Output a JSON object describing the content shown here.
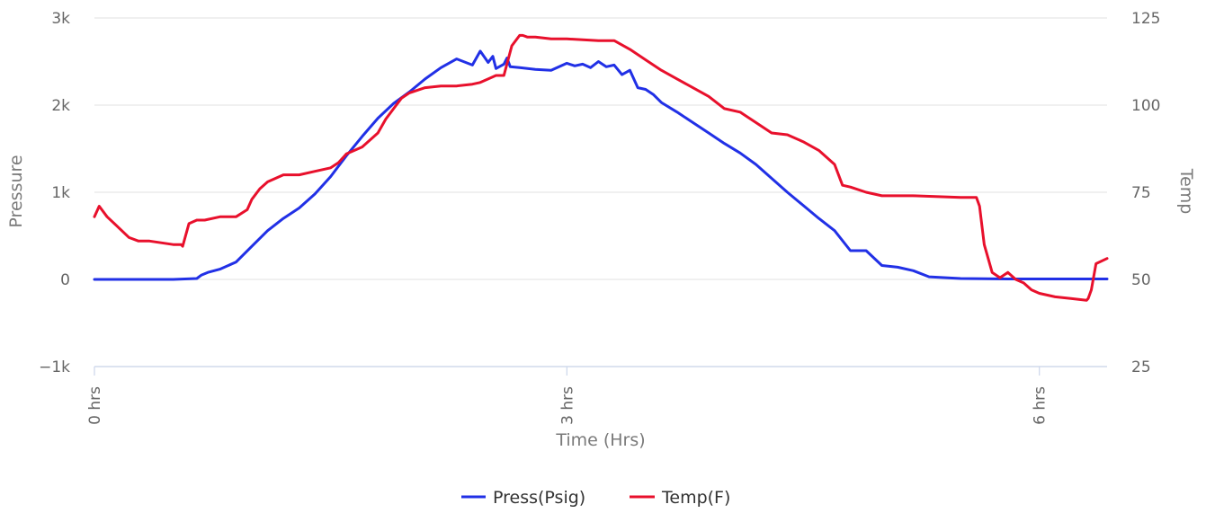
{
  "chart_data": {
    "type": "line",
    "title": "",
    "xlabel": "Time (Hrs)",
    "ylabel_left": "Pressure",
    "ylabel_right": "Temp",
    "xlim": [
      0,
      6.43
    ],
    "ylim_left": [
      -1000,
      3000
    ],
    "ylim_right": [
      25,
      125
    ],
    "x_ticks": [
      {
        "value": 0,
        "label": "0 hrs"
      },
      {
        "value": 3,
        "label": "3 hrs"
      },
      {
        "value": 6,
        "label": "6 hrs"
      }
    ],
    "y_left_ticks": [
      {
        "value": -1000,
        "label": "−1k"
      },
      {
        "value": 0,
        "label": "0"
      },
      {
        "value": 1000,
        "label": "1k"
      },
      {
        "value": 2000,
        "label": "2k"
      },
      {
        "value": 3000,
        "label": "3k"
      }
    ],
    "y_right_ticks": [
      {
        "value": 25,
        "label": "25"
      },
      {
        "value": 50,
        "label": "50"
      },
      {
        "value": 75,
        "label": "75"
      },
      {
        "value": 100,
        "label": "100"
      },
      {
        "value": 125,
        "label": "125"
      }
    ],
    "grid": true,
    "legend_position": "bottom-center",
    "series": [
      {
        "name": "Press(Psig)",
        "axis": "left",
        "color": "#2130e6",
        "x": [
          0,
          0.5,
          0.65,
          0.68,
          0.72,
          0.8,
          0.9,
          1.0,
          1.1,
          1.2,
          1.3,
          1.4,
          1.5,
          1.6,
          1.7,
          1.8,
          1.9,
          2.0,
          2.1,
          2.2,
          2.3,
          2.4,
          2.45,
          2.5,
          2.53,
          2.55,
          2.6,
          2.62,
          2.64,
          2.7,
          2.8,
          2.9,
          3.0,
          3.05,
          3.1,
          3.15,
          3.2,
          3.25,
          3.3,
          3.35,
          3.4,
          3.45,
          3.5,
          3.55,
          3.6,
          3.7,
          3.8,
          3.9,
          4.0,
          4.1,
          4.2,
          4.3,
          4.4,
          4.5,
          4.6,
          4.7,
          4.8,
          4.9,
          5.0,
          5.1,
          5.2,
          5.3,
          5.5,
          5.8,
          6.0,
          6.2,
          6.43
        ],
        "values": [
          0,
          0,
          10,
          50,
          80,
          120,
          200,
          380,
          560,
          700,
          820,
          980,
          1180,
          1420,
          1640,
          1850,
          2020,
          2150,
          2300,
          2430,
          2530,
          2460,
          2620,
          2490,
          2560,
          2420,
          2470,
          2540,
          2440,
          2430,
          2410,
          2400,
          2480,
          2450,
          2470,
          2430,
          2500,
          2440,
          2460,
          2350,
          2400,
          2200,
          2180,
          2120,
          2030,
          1920,
          1800,
          1680,
          1560,
          1450,
          1320,
          1160,
          1000,
          850,
          700,
          560,
          330,
          330,
          160,
          140,
          100,
          30,
          10,
          5,
          5,
          5,
          5
        ]
      },
      {
        "name": "Temp(F)",
        "axis": "right",
        "color": "#e8102c",
        "x": [
          0,
          0.03,
          0.08,
          0.15,
          0.22,
          0.28,
          0.3,
          0.35,
          0.5,
          0.55,
          0.56,
          0.6,
          0.65,
          0.7,
          0.8,
          0.9,
          0.97,
          1.0,
          1.05,
          1.1,
          1.2,
          1.3,
          1.4,
          1.5,
          1.55,
          1.6,
          1.7,
          1.8,
          1.85,
          1.9,
          1.95,
          2.0,
          2.1,
          2.2,
          2.3,
          2.4,
          2.45,
          2.5,
          2.55,
          2.6,
          2.65,
          2.7,
          2.72,
          2.75,
          2.8,
          2.9,
          3.0,
          3.2,
          3.3,
          3.4,
          3.5,
          3.6,
          3.7,
          3.8,
          3.9,
          4.0,
          4.1,
          4.2,
          4.3,
          4.4,
          4.5,
          4.6,
          4.7,
          4.75,
          4.8,
          4.9,
          5.0,
          5.1,
          5.2,
          5.5,
          5.6,
          5.62,
          5.65,
          5.7,
          5.75,
          5.8,
          5.85,
          5.9,
          5.95,
          6.0,
          6.1,
          6.2,
          6.3,
          6.31,
          6.33,
          6.36,
          6.43
        ],
        "values": [
          68,
          71,
          68,
          65,
          62,
          61,
          61,
          61,
          60,
          60,
          59.5,
          66,
          67,
          67,
          68,
          68,
          70,
          73,
          76,
          78,
          80,
          80,
          81,
          82,
          83.5,
          86,
          88,
          92,
          96,
          99,
          102,
          103.5,
          105,
          105.5,
          105.5,
          106,
          106.5,
          107.5,
          108.5,
          108.5,
          117,
          120,
          120,
          119.5,
          119.5,
          119,
          119,
          118.5,
          118.5,
          116,
          113,
          110,
          107.5,
          105,
          102.5,
          99,
          98,
          95,
          92,
          91.5,
          89.5,
          87,
          83,
          77,
          76.5,
          75,
          74,
          74,
          74,
          73.5,
          73.5,
          71,
          60,
          52,
          50.5,
          52,
          50,
          49,
          47,
          46,
          45,
          44.5,
          44,
          44.5,
          47,
          54.5,
          56
        ]
      }
    ]
  }
}
